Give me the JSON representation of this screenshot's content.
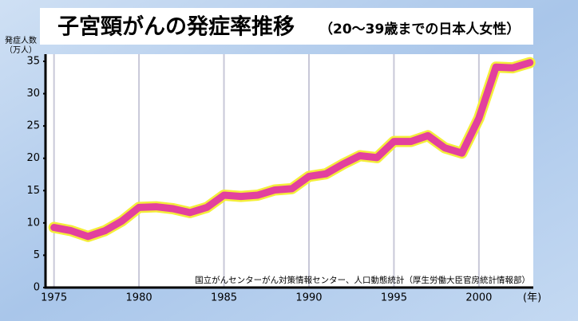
{
  "chart_data": {
    "type": "line",
    "title": "子宮頸がんの発症率推移",
    "subtitle": "（20～39歳までの日本人女性）",
    "y_label": "発症人数",
    "y_unit": "（万人）",
    "x_label": "(年)",
    "source": "国立がんセンターがん対策情報センター、人口動態統計（厚生労働大臣官房統計情報部）",
    "x": [
      1975,
      1976,
      1977,
      1978,
      1979,
      1980,
      1981,
      1982,
      1983,
      1984,
      1985,
      1986,
      1987,
      1988,
      1989,
      1990,
      1991,
      1992,
      1993,
      1994,
      1995,
      1996,
      1997,
      1998,
      1999,
      2000,
      2001,
      2002,
      2003
    ],
    "series": [
      {
        "color": "#e2409e",
        "values": [
          9.3,
          8.8,
          7.9,
          8.8,
          10.3,
          12.4,
          12.5,
          12.2,
          11.6,
          12.4,
          14.3,
          14.1,
          14.3,
          15.1,
          15.3,
          17.2,
          17.6,
          19.1,
          20.4,
          20.1,
          22.6,
          22.6,
          23.5,
          21.6,
          20.8,
          26.2,
          34.1,
          34.0,
          34.8
        ]
      }
    ],
    "xlim": [
      1974.5,
      2003.2
    ],
    "ylim": [
      0,
      35
    ],
    "xticks": [
      1975,
      1980,
      1985,
      1990,
      1995,
      2000
    ],
    "yticks": [
      0,
      5,
      10,
      15,
      20,
      25,
      30,
      35
    ],
    "grid": true
  }
}
